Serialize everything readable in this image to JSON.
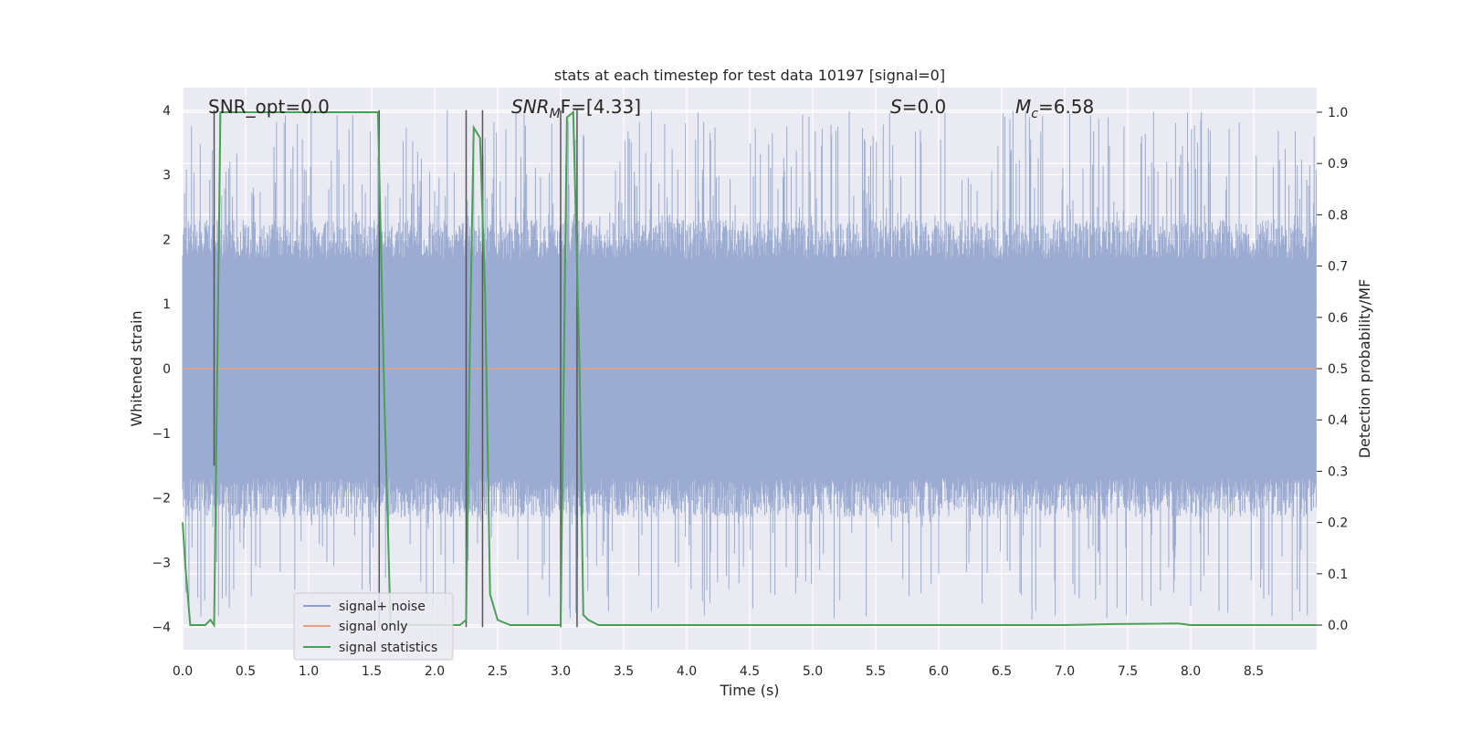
{
  "chart_data": {
    "type": "line",
    "title": "stats at each timestep for test data 10197 [signal=0]",
    "xlabel": "Time (s)",
    "ylabel": "Whitened strain",
    "y2label": "Detection probability/MF",
    "xlim": [
      0.0,
      9.0
    ],
    "ylim": [
      -4.35,
      4.35
    ],
    "y2lim": [
      -0.048,
      1.048
    ],
    "xticks": [
      0.0,
      0.5,
      1.0,
      1.5,
      2.0,
      2.5,
      3.0,
      3.5,
      4.0,
      4.5,
      5.0,
      5.5,
      6.0,
      6.5,
      7.0,
      7.5,
      8.0,
      8.5
    ],
    "xtick_labels": [
      "0.0",
      "0.5",
      "1.0",
      "1.5",
      "2.0",
      "2.5",
      "3.0",
      "3.5",
      "4.0",
      "4.5",
      "5.0",
      "5.5",
      "6.0",
      "6.5",
      "7.0",
      "7.5",
      "8.0",
      "8.5"
    ],
    "yticks": [
      4,
      3,
      2,
      1,
      0,
      -1,
      -2,
      -3,
      -4
    ],
    "ytick_labels": [
      "4",
      "3",
      "2",
      "1",
      "0",
      "−1",
      "−2",
      "−3",
      "−4"
    ],
    "y2ticks": [
      1.0,
      0.9,
      0.8,
      0.7,
      0.6,
      0.5,
      0.4,
      0.3,
      0.2,
      0.1,
      0.0
    ],
    "y2tick_labels": [
      "1.0",
      "0.9",
      "0.8",
      "0.7",
      "0.6",
      "0.5",
      "0.4",
      "0.3",
      "0.2",
      "0.1",
      "0.0"
    ],
    "grid": true,
    "legend_position": "lower-left",
    "series": [
      {
        "name": "signal+ noise",
        "color": "#8da0cb",
        "axis": "left",
        "description_envelope": {
          "typical_range": [
            -2.0,
            2.0
          ],
          "peaks_range": [
            -3.9,
            4.0
          ]
        }
      },
      {
        "name": "signal only",
        "color": "#e8a07e",
        "axis": "left",
        "x": [
          0.0,
          9.0
        ],
        "y": [
          0.0,
          0.0
        ]
      },
      {
        "name": "signal statistics",
        "color": "#4c9f57",
        "axis": "right",
        "x": [
          0.0,
          0.02,
          0.06,
          0.1,
          0.18,
          0.22,
          0.25,
          0.3,
          0.35,
          0.5,
          1.0,
          1.4,
          1.55,
          1.6,
          1.65,
          2.2,
          2.25,
          2.28,
          2.31,
          2.36,
          2.4,
          2.44,
          2.5,
          2.6,
          3.0,
          3.05,
          3.1,
          3.15,
          3.18,
          3.22,
          3.3,
          4.0,
          5.0,
          6.0,
          7.0,
          7.4,
          7.9,
          8.0,
          9.0
        ],
        "y": [
          0.2,
          0.12,
          0.0,
          0.0,
          0.0,
          0.01,
          0.0,
          1.0,
          1.0,
          1.0,
          1.0,
          1.0,
          1.0,
          0.45,
          0.0,
          0.0,
          0.01,
          0.55,
          0.97,
          0.95,
          0.65,
          0.06,
          0.01,
          0.0,
          0.0,
          0.99,
          1.0,
          0.5,
          0.02,
          0.01,
          0.0,
          0.0,
          0.0,
          0.0,
          0.0,
          0.002,
          0.003,
          0.0,
          0.0
        ]
      }
    ],
    "markers": {
      "name": "detection markers",
      "color": "#555555",
      "x": [
        0.25,
        1.56,
        2.25,
        2.38,
        3.0,
        3.13
      ],
      "y_top": [
        4.0,
        4.0,
        4.0,
        4.0,
        4.0,
        4.0
      ],
      "y_bottom": [
        -1.5,
        -4.0,
        -4.0,
        -4.0,
        -4.0,
        -4.0
      ]
    },
    "annotations": [
      {
        "text": "SNR_opt=0.0",
        "x": 0.2,
        "y": 4.13
      },
      {
        "text_base": "SNR",
        "text_sub": "M",
        "text_rest": "F=[4.33]",
        "x": 2.6,
        "y": 4.13
      },
      {
        "text_base": "S",
        "text_rest": "=0.0",
        "x": 5.62,
        "y": 4.13
      },
      {
        "text_base": "M",
        "text_sub": "c",
        "text_rest": "=6.58",
        "x": 6.6,
        "y": 4.13
      }
    ],
    "legend": [
      "signal+ noise",
      "signal only",
      "signal statistics"
    ]
  }
}
